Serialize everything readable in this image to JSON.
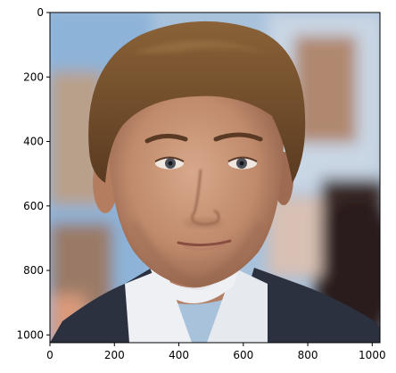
{
  "image": {
    "subject": "portrait photo of a young man with swept-back brown hair, dark suit jacket and white shirt, blurred background"
  },
  "axes": {
    "x_ticks": [
      "0",
      "200",
      "400",
      "600",
      "800",
      "1000"
    ],
    "y_ticks": [
      "0",
      "200",
      "400",
      "600",
      "800",
      "1000"
    ],
    "x_range": [
      0,
      1024
    ],
    "y_range": [
      1024,
      0
    ]
  },
  "colors": {
    "hair": "#7a5530",
    "skin": "#c99578",
    "suit": "#2c3140",
    "shirt": "#eef0f4",
    "background_blue": "#8fb2d4",
    "background_warm": "#b88f72"
  }
}
